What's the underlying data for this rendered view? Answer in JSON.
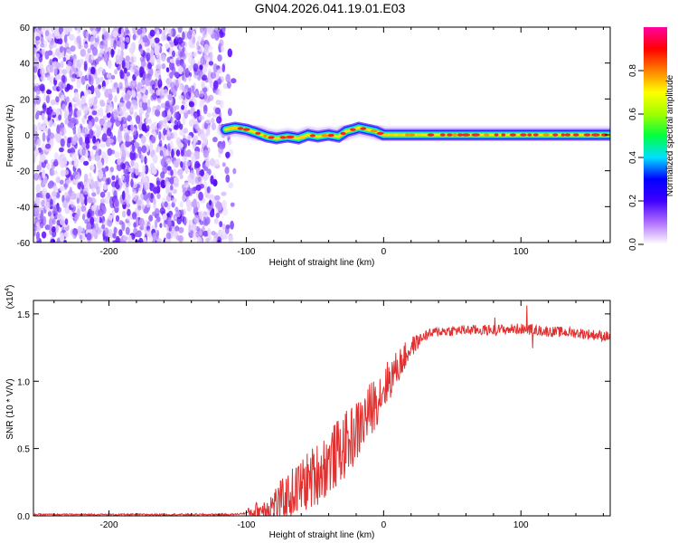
{
  "title": "GN04.2026.041.19.01.E03",
  "colors": {
    "axis": "#000000",
    "line": "#e03030",
    "background": "#ffffff"
  },
  "chart_data": [
    {
      "type": "heatmap",
      "name": "spectrogram",
      "xlabel": "Height of straight line (km)",
      "ylabel": "Frequency (Hz)",
      "xlim": [
        -255,
        165
      ],
      "ylim": [
        -60,
        60
      ],
      "x_ticks": [
        -200,
        -100,
        0,
        100
      ],
      "x_tick_labels": [
        "-200",
        "-100",
        "0",
        "100"
      ],
      "y_ticks": [
        60,
        40,
        20,
        0,
        -20,
        -40,
        -60
      ],
      "y_tick_labels": [
        "60",
        "40",
        "20",
        "0",
        "-20",
        "-40",
        "-60"
      ],
      "colorbar": {
        "label": "Normalized spectral amplitude",
        "range": [
          0,
          1
        ],
        "ticks": [
          0.0,
          0.2,
          0.4,
          0.6,
          0.8
        ],
        "tick_labels": [
          "0.0",
          "0.2",
          "0.4",
          "0.6",
          "0.8"
        ],
        "stops": [
          "#ffffff",
          "#b070ff",
          "#4000ff",
          "#0000ff",
          "#00e0ff",
          "#00ff40",
          "#a0ff00",
          "#ffff00",
          "#ff8000",
          "#ff0000",
          "#ff00a0"
        ]
      },
      "noise_region_x": [
        -255,
        -108
      ],
      "ridge": [
        {
          "x": -115,
          "f": 3
        },
        {
          "x": -108,
          "f": 4
        },
        {
          "x": -100,
          "f": 3
        },
        {
          "x": -92,
          "f": 1
        },
        {
          "x": -85,
          "f": -1
        },
        {
          "x": -78,
          "f": -2
        },
        {
          "x": -70,
          "f": -1
        },
        {
          "x": -62,
          "f": -2
        },
        {
          "x": -55,
          "f": 0
        },
        {
          "x": -48,
          "f": -1
        },
        {
          "x": -40,
          "f": 0
        },
        {
          "x": -33,
          "f": -1
        },
        {
          "x": -27,
          "f": 2
        },
        {
          "x": -22,
          "f": 3
        },
        {
          "x": -18,
          "f": 4
        },
        {
          "x": -12,
          "f": 3
        },
        {
          "x": -6,
          "f": 2
        },
        {
          "x": 0,
          "f": 0
        },
        {
          "x": 40,
          "f": 0
        },
        {
          "x": 80,
          "f": 0
        },
        {
          "x": 120,
          "f": 0
        },
        {
          "x": 165,
          "f": 0
        }
      ]
    },
    {
      "type": "line",
      "name": "snr",
      "xlabel": "Height of straight line (km)",
      "ylabel": "SNR (10 * V/V)",
      "multiplier_label": "(x10",
      "multiplier_exp": "4",
      "multiplier_close": ")",
      "xlim": [
        -255,
        165
      ],
      "ylim": [
        0,
        1.6
      ],
      "x_ticks": [
        -200,
        -100,
        0,
        100
      ],
      "x_tick_labels": [
        "-200",
        "-100",
        "0",
        "100"
      ],
      "y_ticks": [
        0.0,
        0.5,
        1.0,
        1.5
      ],
      "y_tick_labels": [
        "0.0",
        "0.5",
        "1.0",
        "1.5"
      ],
      "series": [
        {
          "name": "SNR",
          "x": [
            -255,
            -200,
            -150,
            -110,
            -100,
            -90,
            -80,
            -70,
            -60,
            -50,
            -40,
            -30,
            -20,
            -10,
            0,
            10,
            20,
            30,
            40,
            60,
            80,
            100,
            120,
            140,
            165
          ],
          "y": [
            0.01,
            0.01,
            0.01,
            0.01,
            0.02,
            0.04,
            0.08,
            0.14,
            0.22,
            0.3,
            0.4,
            0.5,
            0.62,
            0.78,
            0.95,
            1.1,
            1.25,
            1.34,
            1.37,
            1.38,
            1.38,
            1.39,
            1.37,
            1.36,
            1.33
          ]
        }
      ]
    }
  ]
}
